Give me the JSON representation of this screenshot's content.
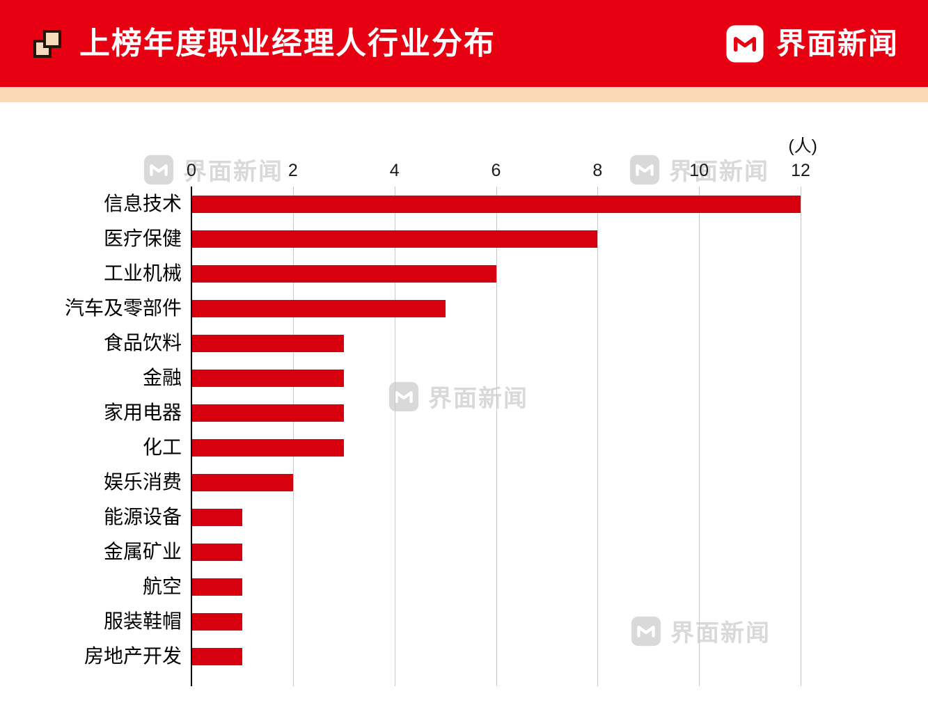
{
  "header": {
    "title": "上榜年度职业经理人行业分布",
    "brand": "界面新闻"
  },
  "watermark": {
    "text": "界面新闻"
  },
  "chart_data": {
    "type": "bar",
    "orientation": "horizontal",
    "title": "上榜年度职业经理人行业分布",
    "unit_label": "(人)",
    "categories": [
      "信息技术",
      "医疗保健",
      "工业机械",
      "汽车及零部件",
      "食品饮料",
      "金融",
      "家用电器",
      "化工",
      "娱乐消费",
      "能源设备",
      "金属矿业",
      "航空",
      "服装鞋帽",
      "房地产开发"
    ],
    "values": [
      12,
      8,
      6,
      5,
      3,
      3,
      3,
      3,
      2,
      1,
      1,
      1,
      1,
      1
    ],
    "xlim": [
      0,
      12
    ],
    "ticks": [
      0,
      2,
      4,
      6,
      8,
      10,
      12
    ],
    "grid": "vertical",
    "legend": "none",
    "colors": {
      "bar": "#D7000F",
      "header_bg": "#E60012",
      "strip_bg": "#F9D9B8"
    }
  }
}
